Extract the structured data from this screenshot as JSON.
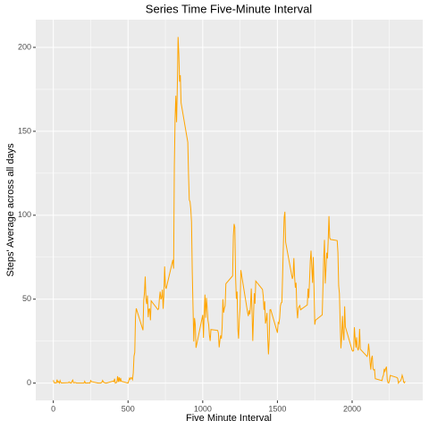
{
  "chart_data": {
    "type": "line",
    "title": "Series Time Five-Minute Interval",
    "x_label": "Five Minute Interval",
    "y_label": "Steps' Average across all days",
    "xlim": [
      -117.75,
      2472.75
    ],
    "xticks": [
      0,
      500,
      1000,
      1500,
      2000
    ],
    "ylim": [
      -10.3,
      216.5
    ],
    "yticks": [
      0,
      50,
      100,
      150,
      200
    ],
    "grid": true,
    "minor_grid": true,
    "series": [
      {
        "color": "#FFA500",
        "x": [
          0,
          5,
          10,
          15,
          20,
          25,
          30,
          35,
          40,
          45,
          50,
          55,
          100,
          105,
          110,
          115,
          120,
          125,
          130,
          135,
          140,
          145,
          150,
          155,
          200,
          205,
          210,
          215,
          220,
          225,
          230,
          235,
          240,
          245,
          250,
          255,
          300,
          305,
          310,
          315,
          320,
          325,
          330,
          335,
          340,
          345,
          350,
          355,
          400,
          405,
          410,
          415,
          420,
          425,
          430,
          435,
          440,
          445,
          450,
          455,
          500,
          505,
          510,
          515,
          520,
          525,
          530,
          535,
          540,
          545,
          550,
          555,
          600,
          605,
          610,
          615,
          620,
          625,
          630,
          635,
          640,
          645,
          650,
          655,
          700,
          705,
          710,
          715,
          720,
          725,
          730,
          735,
          740,
          745,
          750,
          755,
          800,
          805,
          810,
          815,
          820,
          825,
          830,
          835,
          840,
          845,
          850,
          855,
          900,
          905,
          910,
          915,
          920,
          925,
          930,
          935,
          940,
          945,
          950,
          955,
          1000,
          1005,
          1010,
          1015,
          1020,
          1025,
          1030,
          1035,
          1040,
          1045,
          1050,
          1055,
          1100,
          1105,
          1110,
          1115,
          1120,
          1125,
          1130,
          1135,
          1140,
          1145,
          1150,
          1155,
          1200,
          1205,
          1210,
          1215,
          1220,
          1225,
          1230,
          1235,
          1240,
          1245,
          1250,
          1255,
          1300,
          1305,
          1310,
          1315,
          1320,
          1325,
          1330,
          1335,
          1340,
          1345,
          1350,
          1355,
          1400,
          1405,
          1410,
          1415,
          1420,
          1425,
          1430,
          1435,
          1440,
          1445,
          1450,
          1455,
          1500,
          1505,
          1510,
          1515,
          1520,
          1525,
          1530,
          1535,
          1540,
          1545,
          1550,
          1555,
          1600,
          1605,
          1610,
          1615,
          1620,
          1625,
          1630,
          1635,
          1640,
          1645,
          1650,
          1655,
          1700,
          1705,
          1710,
          1715,
          1720,
          1725,
          1730,
          1735,
          1740,
          1745,
          1750,
          1755,
          1800,
          1805,
          1810,
          1815,
          1820,
          1825,
          1830,
          1835,
          1840,
          1845,
          1850,
          1855,
          1900,
          1905,
          1910,
          1915,
          1920,
          1925,
          1930,
          1935,
          1940,
          1945,
          1950,
          1955,
          2000,
          2005,
          2010,
          2015,
          2020,
          2025,
          2030,
          2035,
          2040,
          2045,
          2050,
          2055,
          2100,
          2105,
          2110,
          2115,
          2120,
          2125,
          2130,
          2135,
          2140,
          2145,
          2150,
          2155,
          2200,
          2205,
          2210,
          2215,
          2220,
          2225,
          2230,
          2235,
          2240,
          2245,
          2250,
          2255,
          2300,
          2305,
          2310,
          2315,
          2320,
          2325,
          2330,
          2335,
          2340,
          2345,
          2350,
          2355
        ],
        "values": [
          1.7,
          0.3,
          0.1,
          0.2,
          0.1,
          2.1,
          0.5,
          0.9,
          0,
          1.5,
          0.3,
          0.1,
          0.3,
          0.7,
          0.2,
          0.3,
          0,
          1.1,
          1.8,
          0.2,
          0.2,
          0.4,
          0.3,
          0,
          0,
          0,
          1.1,
          0,
          0,
          0.1,
          0,
          0.2,
          0,
          0,
          1.5,
          0.9,
          0,
          0,
          0,
          0,
          0.2,
          0.6,
          1.6,
          0.6,
          0.5,
          0.1,
          0,
          0,
          1.2,
          0.9,
          2.6,
          0,
          0.3,
          0.4,
          4.1,
          0.7,
          3.5,
          0.8,
          3.1,
          1.1,
          0,
          1.6,
          3,
          2.2,
          3.3,
          3,
          2.1,
          6.1,
          16,
          18.3,
          39.5,
          44.5,
          31.5,
          49.3,
          53.8,
          63.5,
          50,
          47.1,
          52.2,
          39.3,
          44,
          44.2,
          37.4,
          49,
          43.8,
          44.4,
          50.5,
          54.5,
          49.9,
          51,
          55.7,
          44.3,
          52.3,
          69.5,
          57.8,
          56.2,
          73.4,
          68.2,
          129.4,
          157.5,
          171.2,
          155.4,
          177.3,
          206.2,
          195.9,
          179.6,
          183.4,
          167,
          143.5,
          124,
          109.1,
          108.1,
          103.7,
          95.97,
          66.2,
          45.2,
          24.8,
          38.8,
          34.98,
          21.06,
          40.6,
          26.98,
          42.4,
          52.7,
          38.9,
          50.8,
          44.3,
          37.4,
          34.7,
          28.3,
          25.1,
          31.9,
          31.4,
          29.7,
          21.3,
          25.5,
          28.4,
          26.5,
          33.4,
          50,
          42,
          44.6,
          46,
          59.2,
          63.9,
          87.6,
          94.8,
          92.8,
          63.4,
          50.2,
          54.5,
          32.4,
          26.5,
          37.7,
          45.1,
          67.3,
          42.3,
          39.9,
          43.3,
          40.98,
          46.2,
          56.4,
          42.8,
          25.1,
          39.96,
          53.5,
          47.3,
          60.8,
          55.8,
          51.9,
          43.6,
          48.7,
          35.5,
          37.5,
          41.8,
          27.5,
          17.1,
          26.1,
          43.6,
          43.8,
          30,
          36.1,
          35.5,
          38.8,
          45.96,
          47.8,
          48.1,
          65.3,
          82.9,
          98.7,
          102.1,
          83.96,
          62.1,
          64.1,
          74.5,
          63.2,
          56.9,
          59.8,
          43.9,
          38.6,
          44.7,
          45.5,
          46.2,
          43.7,
          46.6,
          56.3,
          50.7,
          61.2,
          72.7,
          78.9,
          68.9,
          59.7,
          75.1,
          56.5,
          34.8,
          37.5,
          40.7,
          58,
          74.7,
          85.3,
          59.3,
          67.8,
          77.7,
          74.2,
          85.3,
          99.5,
          86.6,
          85.6,
          84.9,
          77.8,
          58,
          53.4,
          36.3,
          20.7,
          27.4,
          40,
          30.2,
          25.5,
          45.7,
          33.5,
          19.6,
          19,
          19.3,
          33.3,
          26.8,
          21.2,
          27.3,
          21.3,
          19.5,
          21.3,
          32.3,
          20.2,
          15.9,
          17.2,
          23.5,
          19.2,
          12.5,
          8,
          14.7,
          16.3,
          8.7,
          7.8,
          8.1,
          2.6,
          1.5,
          3.7,
          4.8,
          8.5,
          7.1,
          8.7,
          9.8,
          2.2,
          0.3,
          0.1,
          1.6,
          4.6,
          3.3,
          2.8,
          0,
          0.8,
          1,
          1.6,
          2.6,
          4.7,
          3.3,
          0.6,
          0.2,
          1.1
        ]
      }
    ]
  }
}
